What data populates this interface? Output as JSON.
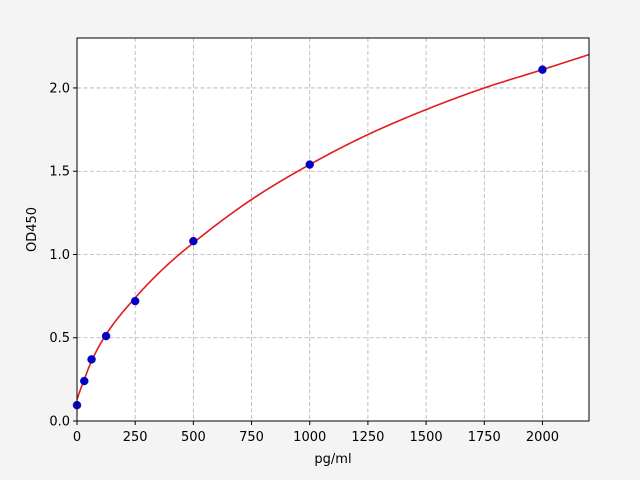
{
  "chart_data": {
    "type": "scatter",
    "title": "",
    "xlabel": "pg/ml",
    "ylabel": "OD450",
    "xlim": [
      0,
      2200
    ],
    "ylim": [
      0,
      2.3
    ],
    "xticks": [
      0,
      250,
      500,
      750,
      1000,
      1250,
      1500,
      1750,
      2000
    ],
    "yticks": [
      0.0,
      0.5,
      1.0,
      1.5,
      2.0
    ],
    "xtick_labels": [
      "0",
      "250",
      "500",
      "750",
      "1000",
      "1250",
      "1500",
      "1750",
      "2000"
    ],
    "ytick_labels": [
      "0.0",
      "0.5",
      "1.0",
      "1.5",
      "2.0"
    ],
    "grid": true,
    "series": [
      {
        "kind": "points",
        "color": "#0000cc",
        "x": [
          0,
          31.25,
          62.5,
          125,
          250,
          500,
          1000,
          2000
        ],
        "y": [
          0.095,
          0.24,
          0.37,
          0.51,
          0.72,
          1.08,
          1.54,
          2.11
        ]
      },
      {
        "kind": "fit-line",
        "color": "#e31a1c",
        "x": [
          0,
          15,
          31.25,
          62.5,
          125,
          250,
          375,
          500,
          750,
          1000,
          1250,
          1500,
          1750,
          2000,
          2200
        ],
        "y": [
          0.13,
          0.19,
          0.25,
          0.36,
          0.52,
          0.74,
          0.92,
          1.07,
          1.33,
          1.54,
          1.72,
          1.87,
          2.0,
          2.11,
          2.2
        ]
      }
    ]
  }
}
